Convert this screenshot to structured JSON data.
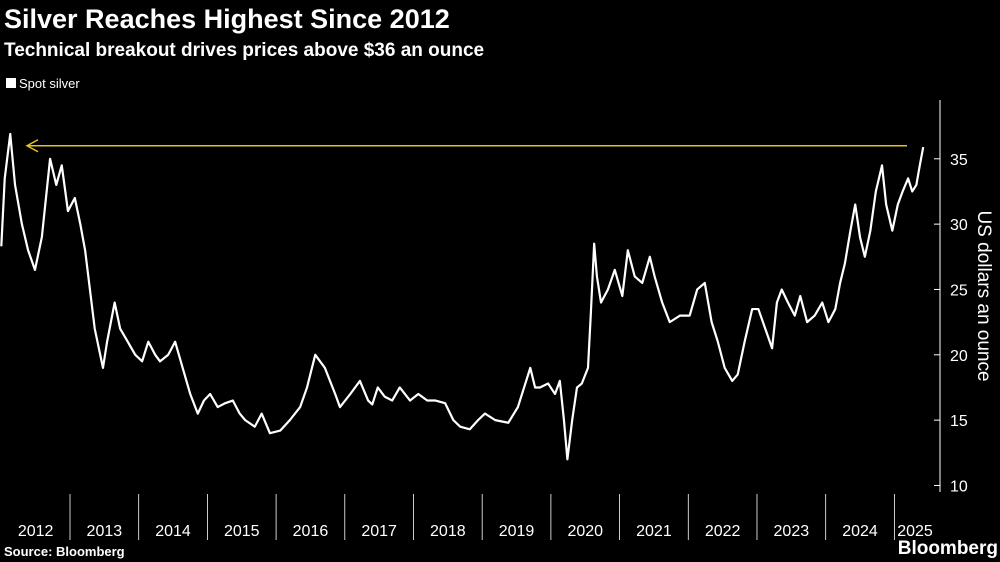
{
  "chart_data": {
    "type": "line",
    "title": "Silver Reaches Highest Since 2012",
    "subtitle": "Technical breakout drives prices above $36 an ounce",
    "y_label": "US dollars an ounce",
    "source": "Source: Bloomberg",
    "brand": "Bloomberg",
    "legend": "top-left",
    "xlim": [
      2012,
      2025.6
    ],
    "xticks": [
      2012,
      2013,
      2014,
      2015,
      2016,
      2017,
      2018,
      2019,
      2020,
      2021,
      2022,
      2023,
      2024,
      2025
    ],
    "ylim": [
      9.5,
      39.5
    ],
    "yticks": [
      10,
      15,
      20,
      25,
      30,
      35
    ],
    "reference_line": {
      "value": 36,
      "color": "#e8c21a"
    },
    "x": [
      2012.0,
      2012.05,
      2012.13,
      2012.2,
      2012.3,
      2012.39,
      2012.49,
      2012.59,
      2012.71,
      2012.8,
      2012.88,
      2012.97,
      2013.07,
      2013.15,
      2013.22,
      2013.29,
      2013.36,
      2013.48,
      2013.54,
      2013.65,
      2013.73,
      2013.84,
      2013.95,
      2014.05,
      2014.14,
      2014.24,
      2014.31,
      2014.43,
      2014.53,
      2014.64,
      2014.75,
      2014.86,
      2014.95,
      2015.04,
      2015.15,
      2015.26,
      2015.37,
      2015.47,
      2015.55,
      2015.69,
      2015.79,
      2015.91,
      2016.06,
      2016.2,
      2016.35,
      2016.45,
      2016.57,
      2016.64,
      2016.71,
      2016.86,
      2016.93,
      2017.08,
      2017.22,
      2017.34,
      2017.4,
      2017.48,
      2017.58,
      2017.69,
      2017.8,
      2017.95,
      2018.07,
      2018.2,
      2018.32,
      2018.46,
      2018.58,
      2018.68,
      2018.82,
      2018.94,
      2019.04,
      2019.19,
      2019.38,
      2019.52,
      2019.61,
      2019.7,
      2019.77,
      2019.84,
      2019.96,
      2020.06,
      2020.13,
      2020.19,
      2020.24,
      2020.31,
      2020.38,
      2020.45,
      2020.54,
      2020.58,
      2020.63,
      2020.67,
      2020.73,
      2020.83,
      2020.93,
      2021.04,
      2021.12,
      2021.22,
      2021.33,
      2021.44,
      2021.51,
      2021.62,
      2021.73,
      2021.88,
      2022.02,
      2022.13,
      2022.24,
      2022.34,
      2022.43,
      2022.53,
      2022.64,
      2022.72,
      2022.82,
      2022.93,
      2023.02,
      2023.12,
      2023.22,
      2023.29,
      2023.36,
      2023.45,
      2023.55,
      2023.63,
      2023.73,
      2023.84,
      2023.95,
      2024.04,
      2024.14,
      2024.21,
      2024.28,
      2024.36,
      2024.43,
      2024.5,
      2024.57,
      2024.65,
      2024.73,
      2024.82,
      2024.88,
      2024.97,
      2025.05,
      2025.12,
      2025.2,
      2025.26,
      2025.32,
      2025.37,
      2025.42
    ],
    "series": [
      {
        "name": "Spot silver",
        "color": "#ffffff",
        "values": [
          28.3,
          33.5,
          36.9,
          33,
          30,
          28,
          26.5,
          29,
          35,
          33,
          34.5,
          31,
          32,
          30,
          28,
          25,
          22,
          19,
          21,
          24,
          22,
          21,
          20,
          19.5,
          21,
          20,
          19.5,
          20,
          21,
          19,
          17,
          15.5,
          16.5,
          17,
          16,
          16.3,
          16.5,
          15.5,
          15,
          14.5,
          15.5,
          14,
          14.2,
          15,
          16,
          17.5,
          20,
          19.5,
          19,
          17,
          16,
          17,
          18,
          16.5,
          16.2,
          17.5,
          16.8,
          16.5,
          17.5,
          16.5,
          17,
          16.5,
          16.5,
          16.3,
          15,
          14.5,
          14.3,
          15,
          15.5,
          15,
          14.8,
          16,
          17.5,
          19,
          17.5,
          17.5,
          17.8,
          17,
          18,
          15,
          12,
          15,
          17.5,
          17.8,
          19,
          23,
          28.5,
          26,
          24,
          25,
          26.5,
          24.5,
          28,
          26,
          25.5,
          27.5,
          26,
          24,
          22.5,
          23,
          23,
          25,
          25.5,
          22.5,
          21,
          19,
          18,
          18.5,
          21,
          23.5,
          23.5,
          22,
          20.5,
          24,
          25,
          24,
          23,
          24.5,
          22.5,
          23,
          24,
          22.5,
          23.5,
          25.5,
          27,
          29.5,
          31.5,
          29,
          27.5,
          29.5,
          32.5,
          34.5,
          31.5,
          29.5,
          31.5,
          32.5,
          33.5,
          32.5,
          33,
          34.5,
          35.9
        ]
      }
    ]
  }
}
